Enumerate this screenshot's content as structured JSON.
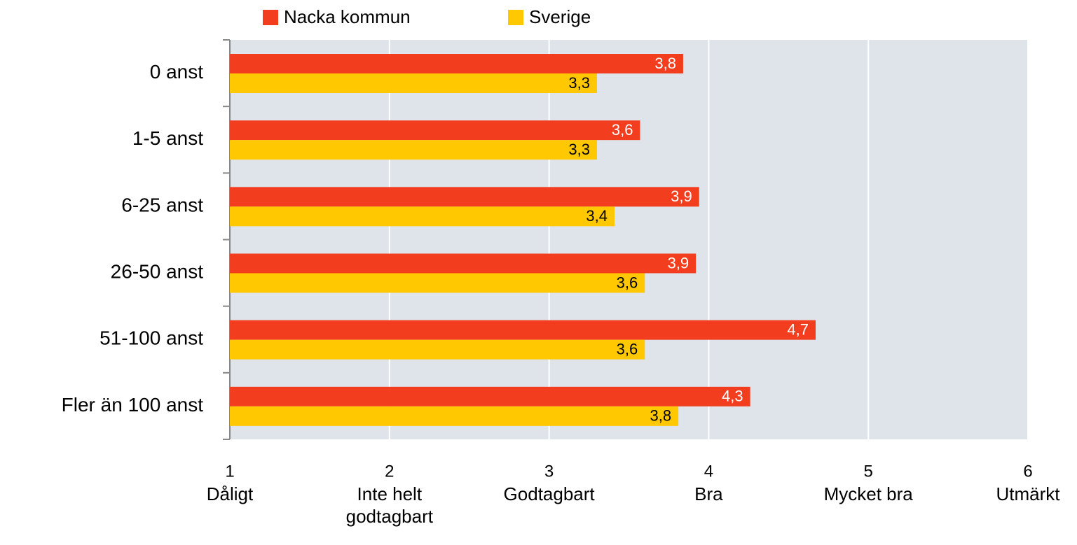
{
  "chart_data": {
    "type": "hbar",
    "categories": [
      "0 anst",
      "1-5 anst",
      "6-25 anst",
      "26-50 anst",
      "51-100 anst",
      "Fler än 100 anst"
    ],
    "series": [
      {
        "name": "Nacka kommun",
        "color": "#f23d1f",
        "values": [
          3.84,
          3.57,
          3.94,
          3.92,
          4.67,
          4.26
        ],
        "value_labels": [
          "3,8",
          "3,6",
          "3,9",
          "3,9",
          "4,7",
          "4,3"
        ]
      },
      {
        "name": "Sverige",
        "color": "#ffc800",
        "values": [
          3.3,
          3.3,
          3.41,
          3.6,
          3.6,
          3.81
        ],
        "value_labels": [
          "3,3",
          "3,3",
          "3,4",
          "3,6",
          "3,6",
          "3,8"
        ]
      }
    ],
    "xlim": [
      1,
      6
    ],
    "xticks": [
      1,
      2,
      3,
      4,
      5,
      6
    ],
    "xtick_descriptions": [
      "Dåligt",
      "Inte helt godtagbart",
      "Godtagbart",
      "Bra",
      "Mycket bra",
      "Utmärkt"
    ],
    "grid": true,
    "legend": "top"
  }
}
